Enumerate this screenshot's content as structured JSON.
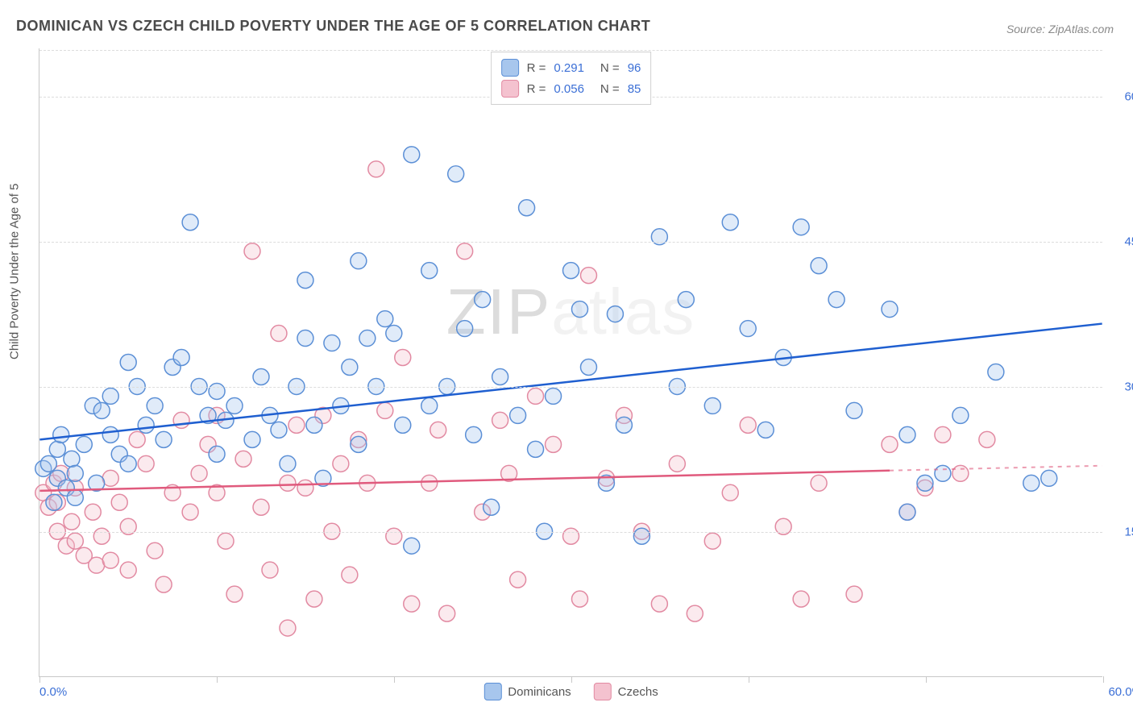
{
  "title": "DOMINICAN VS CZECH CHILD POVERTY UNDER THE AGE OF 5 CORRELATION CHART",
  "source": "Source: ZipAtlas.com",
  "ylabel": "Child Poverty Under the Age of 5",
  "watermark": {
    "part1": "ZIP",
    "part2": "atlas"
  },
  "chart": {
    "type": "scatter",
    "background_color": "#ffffff",
    "grid_color": "#dcdcdc",
    "axis_color": "#c8c8c8",
    "xlim": [
      0,
      60
    ],
    "ylim": [
      0,
      65
    ],
    "xtick_positions": [
      0,
      10,
      20,
      30,
      40,
      50,
      60
    ],
    "ytick_positions": [
      15,
      30,
      45,
      60
    ],
    "ytick_labels": [
      "15.0%",
      "30.0%",
      "45.0%",
      "60.0%"
    ],
    "xaxis_left_label": "0.0%",
    "xaxis_right_label": "60.0%",
    "tick_label_color": "#3b6fd6",
    "tick_label_fontsize": 15,
    "marker_radius": 10,
    "marker_stroke_width": 1.5,
    "marker_fill_opacity": 0.35,
    "trend_line_width": 2.5,
    "trend_dash_line_width": 2
  },
  "series": [
    {
      "key": "dominicans",
      "label": "Dominicans",
      "color_fill": "#a7c6ed",
      "color_stroke": "#5b8fd6",
      "trend_color": "#1f5fd0",
      "R": "0.291",
      "N": "96",
      "trend": {
        "x1": 0,
        "y1": 24.5,
        "x2": 60,
        "y2": 36.5
      },
      "points": [
        [
          0.2,
          21.5
        ],
        [
          0.5,
          22
        ],
        [
          0.8,
          18
        ],
        [
          1,
          20.5
        ],
        [
          1,
          23.5
        ],
        [
          1.2,
          25
        ],
        [
          1.5,
          19.5
        ],
        [
          1.8,
          22.5
        ],
        [
          2,
          18.5
        ],
        [
          2,
          21
        ],
        [
          2.5,
          24
        ],
        [
          3,
          28
        ],
        [
          3.2,
          20
        ],
        [
          3.5,
          27.5
        ],
        [
          4,
          25
        ],
        [
          4,
          29
        ],
        [
          4.5,
          23
        ],
        [
          5,
          22
        ],
        [
          5,
          32.5
        ],
        [
          5.5,
          30
        ],
        [
          6,
          26
        ],
        [
          6.5,
          28
        ],
        [
          7,
          24.5
        ],
        [
          7.5,
          32
        ],
        [
          8,
          33
        ],
        [
          8.5,
          47
        ],
        [
          9,
          30
        ],
        [
          9.5,
          27
        ],
        [
          10,
          23
        ],
        [
          10,
          29.5
        ],
        [
          10.5,
          26.5
        ],
        [
          11,
          28
        ],
        [
          12,
          24.5
        ],
        [
          12.5,
          31
        ],
        [
          13,
          27
        ],
        [
          13.5,
          25.5
        ],
        [
          14,
          22
        ],
        [
          14.5,
          30
        ],
        [
          15,
          41
        ],
        [
          15,
          35
        ],
        [
          15.5,
          26
        ],
        [
          16,
          20.5
        ],
        [
          16.5,
          34.5
        ],
        [
          17,
          28
        ],
        [
          17.5,
          32
        ],
        [
          18,
          43
        ],
        [
          18,
          24
        ],
        [
          18.5,
          35
        ],
        [
          19,
          30
        ],
        [
          19.5,
          37
        ],
        [
          20,
          35.5
        ],
        [
          20.5,
          26
        ],
        [
          21,
          54
        ],
        [
          21,
          13.5
        ],
        [
          22,
          28
        ],
        [
          22,
          42
        ],
        [
          23,
          30
        ],
        [
          23.5,
          52
        ],
        [
          24,
          36
        ],
        [
          24.5,
          25
        ],
        [
          25,
          39
        ],
        [
          25.5,
          17.5
        ],
        [
          26,
          31
        ],
        [
          27,
          27
        ],
        [
          27.5,
          48.5
        ],
        [
          28,
          23.5
        ],
        [
          28.5,
          15
        ],
        [
          29,
          29
        ],
        [
          30,
          42
        ],
        [
          30.5,
          38
        ],
        [
          31,
          32
        ],
        [
          32,
          20
        ],
        [
          32.5,
          37.5
        ],
        [
          33,
          26
        ],
        [
          34,
          14.5
        ],
        [
          35,
          45.5
        ],
        [
          36,
          30
        ],
        [
          36.5,
          39
        ],
        [
          38,
          28
        ],
        [
          39,
          47
        ],
        [
          40,
          36
        ],
        [
          41,
          25.5
        ],
        [
          42,
          33
        ],
        [
          43,
          46.5
        ],
        [
          44,
          42.5
        ],
        [
          45,
          39
        ],
        [
          46,
          27.5
        ],
        [
          48,
          38
        ],
        [
          49,
          17
        ],
        [
          49,
          25
        ],
        [
          50,
          20
        ],
        [
          51,
          21
        ],
        [
          52,
          27
        ],
        [
          54,
          31.5
        ],
        [
          56,
          20
        ],
        [
          57,
          20.5
        ]
      ]
    },
    {
      "key": "czechs",
      "label": "Czechs",
      "color_fill": "#f4c2cf",
      "color_stroke": "#e28aa2",
      "trend_color": "#e05a7d",
      "R": "0.056",
      "N": "85",
      "trend": {
        "x1": 0,
        "y1": 19.2,
        "x2": 48,
        "y2": 21.3
      },
      "trend_dash": {
        "x1": 48,
        "y1": 21.3,
        "x2": 60,
        "y2": 21.8
      },
      "points": [
        [
          0.2,
          19
        ],
        [
          0.5,
          17.5
        ],
        [
          0.8,
          20
        ],
        [
          1,
          15
        ],
        [
          1,
          18
        ],
        [
          1.2,
          21
        ],
        [
          1.5,
          13.5
        ],
        [
          1.8,
          16
        ],
        [
          2,
          14
        ],
        [
          2,
          19.5
        ],
        [
          2.5,
          12.5
        ],
        [
          3,
          17
        ],
        [
          3.2,
          11.5
        ],
        [
          3.5,
          14.5
        ],
        [
          4,
          20.5
        ],
        [
          4,
          12
        ],
        [
          4.5,
          18
        ],
        [
          5,
          15.5
        ],
        [
          5,
          11
        ],
        [
          5.5,
          24.5
        ],
        [
          6,
          22
        ],
        [
          6.5,
          13
        ],
        [
          7,
          9.5
        ],
        [
          7.5,
          19
        ],
        [
          8,
          26.5
        ],
        [
          8.5,
          17
        ],
        [
          9,
          21
        ],
        [
          9.5,
          24
        ],
        [
          10,
          27
        ],
        [
          10,
          19
        ],
        [
          10.5,
          14
        ],
        [
          11,
          8.5
        ],
        [
          11.5,
          22.5
        ],
        [
          12,
          44
        ],
        [
          12.5,
          17.5
        ],
        [
          13,
          11
        ],
        [
          13.5,
          35.5
        ],
        [
          14,
          5
        ],
        [
          14,
          20
        ],
        [
          14.5,
          26
        ],
        [
          15,
          19.5
        ],
        [
          15.5,
          8
        ],
        [
          16,
          27
        ],
        [
          16.5,
          15
        ],
        [
          17,
          22
        ],
        [
          17.5,
          10.5
        ],
        [
          18,
          24.5
        ],
        [
          18.5,
          20
        ],
        [
          19,
          52.5
        ],
        [
          19.5,
          27.5
        ],
        [
          20,
          14.5
        ],
        [
          20.5,
          33
        ],
        [
          21,
          7.5
        ],
        [
          22,
          20
        ],
        [
          22.5,
          25.5
        ],
        [
          23,
          6.5
        ],
        [
          24,
          44
        ],
        [
          25,
          17
        ],
        [
          26,
          26.5
        ],
        [
          26.5,
          21
        ],
        [
          27,
          10
        ],
        [
          28,
          29
        ],
        [
          29,
          24
        ],
        [
          30,
          14.5
        ],
        [
          30.5,
          8
        ],
        [
          31,
          41.5
        ],
        [
          32,
          20.5
        ],
        [
          33,
          27
        ],
        [
          34,
          15
        ],
        [
          35,
          7.5
        ],
        [
          36,
          22
        ],
        [
          37,
          6.5
        ],
        [
          38,
          14
        ],
        [
          39,
          19
        ],
        [
          40,
          26
        ],
        [
          42,
          15.5
        ],
        [
          43,
          8
        ],
        [
          44,
          20
        ],
        [
          46,
          8.5
        ],
        [
          48,
          24
        ],
        [
          49,
          17
        ],
        [
          50,
          19.5
        ],
        [
          51,
          25
        ],
        [
          52,
          21
        ],
        [
          53.5,
          24.5
        ]
      ]
    }
  ],
  "legend_top": {
    "r_label": "R =",
    "n_label": "N ="
  },
  "legend_bottom_order": [
    "dominicans",
    "czechs"
  ]
}
